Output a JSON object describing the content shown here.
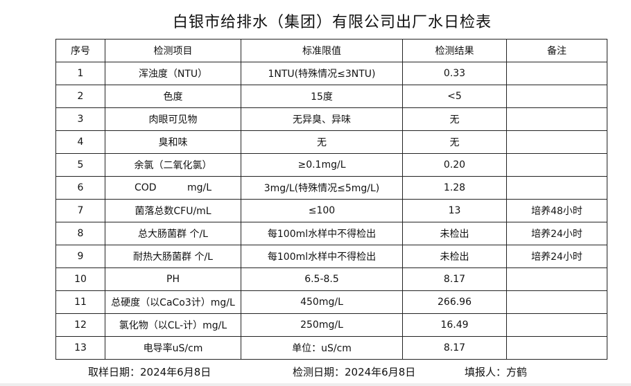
{
  "title": "白银市给排水（集团）有限公司出厂水日检表",
  "headers": [
    "序号",
    "检测项目",
    "标准限值",
    "检测结果",
    "备注"
  ],
  "rows": [
    [
      "1",
      "浑浊度（NTU）",
      "1NTU(特殊情况≤3NTU)",
      "0.33",
      ""
    ],
    [
      "2",
      "色度",
      "15度",
      "<5",
      ""
    ],
    [
      "3",
      "肉眼可见物",
      "无异臭、异味",
      "无",
      ""
    ],
    [
      "4",
      "臭和味",
      "无",
      "无",
      ""
    ],
    [
      "5",
      "余氯（二氧化氯）",
      "≥0.1mg/L",
      "0.20",
      ""
    ],
    [
      "6",
      "COD          mg/L",
      "3mg/L(特殊情况≤5mg/L)",
      "1.28",
      ""
    ],
    [
      "7",
      "菌落总数CFU/mL",
      "≤100",
      "13",
      "培养48小时"
    ],
    [
      "8",
      "总大肠菌群 个/L",
      "每100ml水样中不得检出",
      "未检出",
      "培养24小时"
    ],
    [
      "9",
      "耐热大肠菌群 个/L",
      "每100ml水样中不得检出",
      "未检出",
      "培养24小时"
    ],
    [
      "10",
      "PH",
      "6.5-8.5",
      "8.17",
      ""
    ],
    [
      "11",
      "总硬度（以CaCo3计）mg/L",
      "450mg/L",
      "266.96",
      ""
    ],
    [
      "12",
      "氯化物（以CL-计）mg/L",
      "250mg/L",
      "16.49",
      ""
    ],
    [
      "13",
      "电导率uS/cm",
      "单位：uS/cm",
      "8.17",
      ""
    ]
  ],
  "footer": {
    "sampling_date": "取样日期：2024年6月8日",
    "test_date": "检测日期：2024年6月8日",
    "reporter": "填报人：方鹤"
  }
}
